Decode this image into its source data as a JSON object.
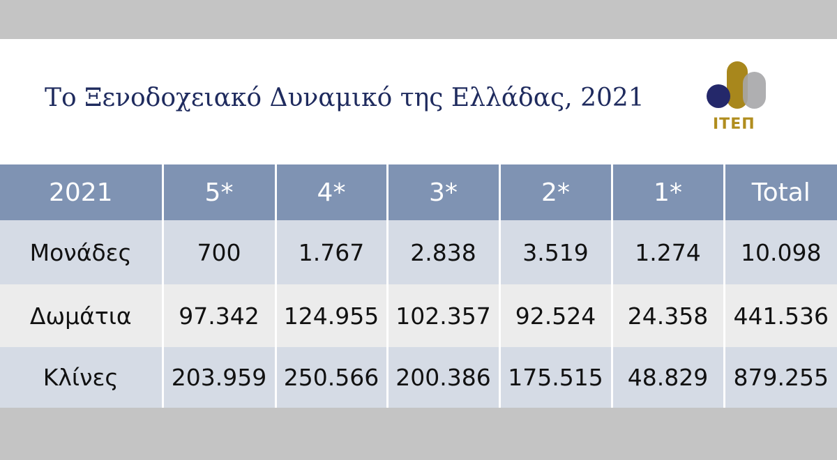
{
  "header": {
    "title": "Το Ξενοδοχειακό Δυναμικό της Ελλάδας, 2021",
    "logo_text": "ΙΤΕΠ"
  },
  "table": {
    "columns": [
      "2021",
      "5*",
      "4*",
      "3*",
      "2*",
      "1*",
      "Total"
    ],
    "rows": [
      [
        "Μονάδες",
        "700",
        "1.767",
        "2.838",
        "3.519",
        "1.274",
        "10.098"
      ],
      [
        "Δωμάτια",
        "97.342",
        "124.955",
        "102.357",
        "92.524",
        "24.358",
        "441.536"
      ],
      [
        "Κλίνες",
        "203.959",
        "250.566",
        "200.386",
        "175.515",
        "48.829",
        "879.255"
      ]
    ]
  }
}
